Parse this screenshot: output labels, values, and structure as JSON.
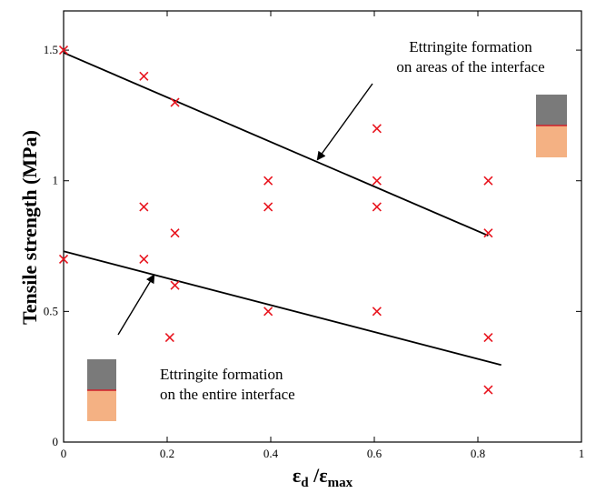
{
  "chart_data": {
    "type": "scatter",
    "title": "",
    "xlabel": {
      "main": "ε",
      "sub_main": "d",
      "sep": " /ε",
      "sub_sep": "max"
    },
    "ylabel": "Tensile strength (MPa)",
    "xlim": [
      0,
      1
    ],
    "ylim": [
      0,
      1.65
    ],
    "x_ticks": [
      0,
      0.2,
      0.4,
      0.6,
      0.8,
      1
    ],
    "x_tick_labels": [
      "0",
      "0.2",
      "0.4",
      "0.6",
      "0.8",
      "1"
    ],
    "y_ticks": [
      0,
      0.5,
      1,
      1.5
    ],
    "y_tick_labels": [
      "0",
      "0.5",
      "1",
      "1.5"
    ],
    "grid": false,
    "points": [
      {
        "x": 0.0,
        "y": 1.5
      },
      {
        "x": 0.155,
        "y": 1.4
      },
      {
        "x": 0.215,
        "y": 1.3
      },
      {
        "x": 0.605,
        "y": 1.2
      },
      {
        "x": 0.395,
        "y": 1.0
      },
      {
        "x": 0.605,
        "y": 1.0
      },
      {
        "x": 0.82,
        "y": 1.0
      },
      {
        "x": 0.155,
        "y": 0.9
      },
      {
        "x": 0.395,
        "y": 0.9
      },
      {
        "x": 0.605,
        "y": 0.9
      },
      {
        "x": 0.215,
        "y": 0.8
      },
      {
        "x": 0.82,
        "y": 0.8
      },
      {
        "x": 0.0,
        "y": 0.7
      },
      {
        "x": 0.155,
        "y": 0.7
      },
      {
        "x": 0.215,
        "y": 0.6
      },
      {
        "x": 0.395,
        "y": 0.5
      },
      {
        "x": 0.605,
        "y": 0.5
      },
      {
        "x": 0.205,
        "y": 0.4
      },
      {
        "x": 0.82,
        "y": 0.4
      },
      {
        "x": 0.82,
        "y": 0.2
      }
    ],
    "trend_lines": [
      {
        "x": [
          0.0,
          0.82
        ],
        "y": [
          1.49,
          0.79
        ]
      },
      {
        "x": [
          0.0,
          0.845
        ],
        "y": [
          0.73,
          0.295
        ]
      }
    ],
    "annotations": [
      {
        "lines": [
          "Ettringite formation",
          "on areas of the interface"
        ],
        "arrow_to": {
          "x": 0.49,
          "y": 1.08
        }
      },
      {
        "lines": [
          "Ettringite formation",
          "on the entire interface"
        ],
        "arrow_to": {
          "x": 0.175,
          "y": 0.64
        }
      }
    ],
    "colors": {
      "marker": "#e8141e",
      "line": "#000000",
      "swatch_top": "#7a7a7a",
      "swatch_bottom": "#f4b183",
      "swatch_divider": "#d0202a"
    }
  }
}
